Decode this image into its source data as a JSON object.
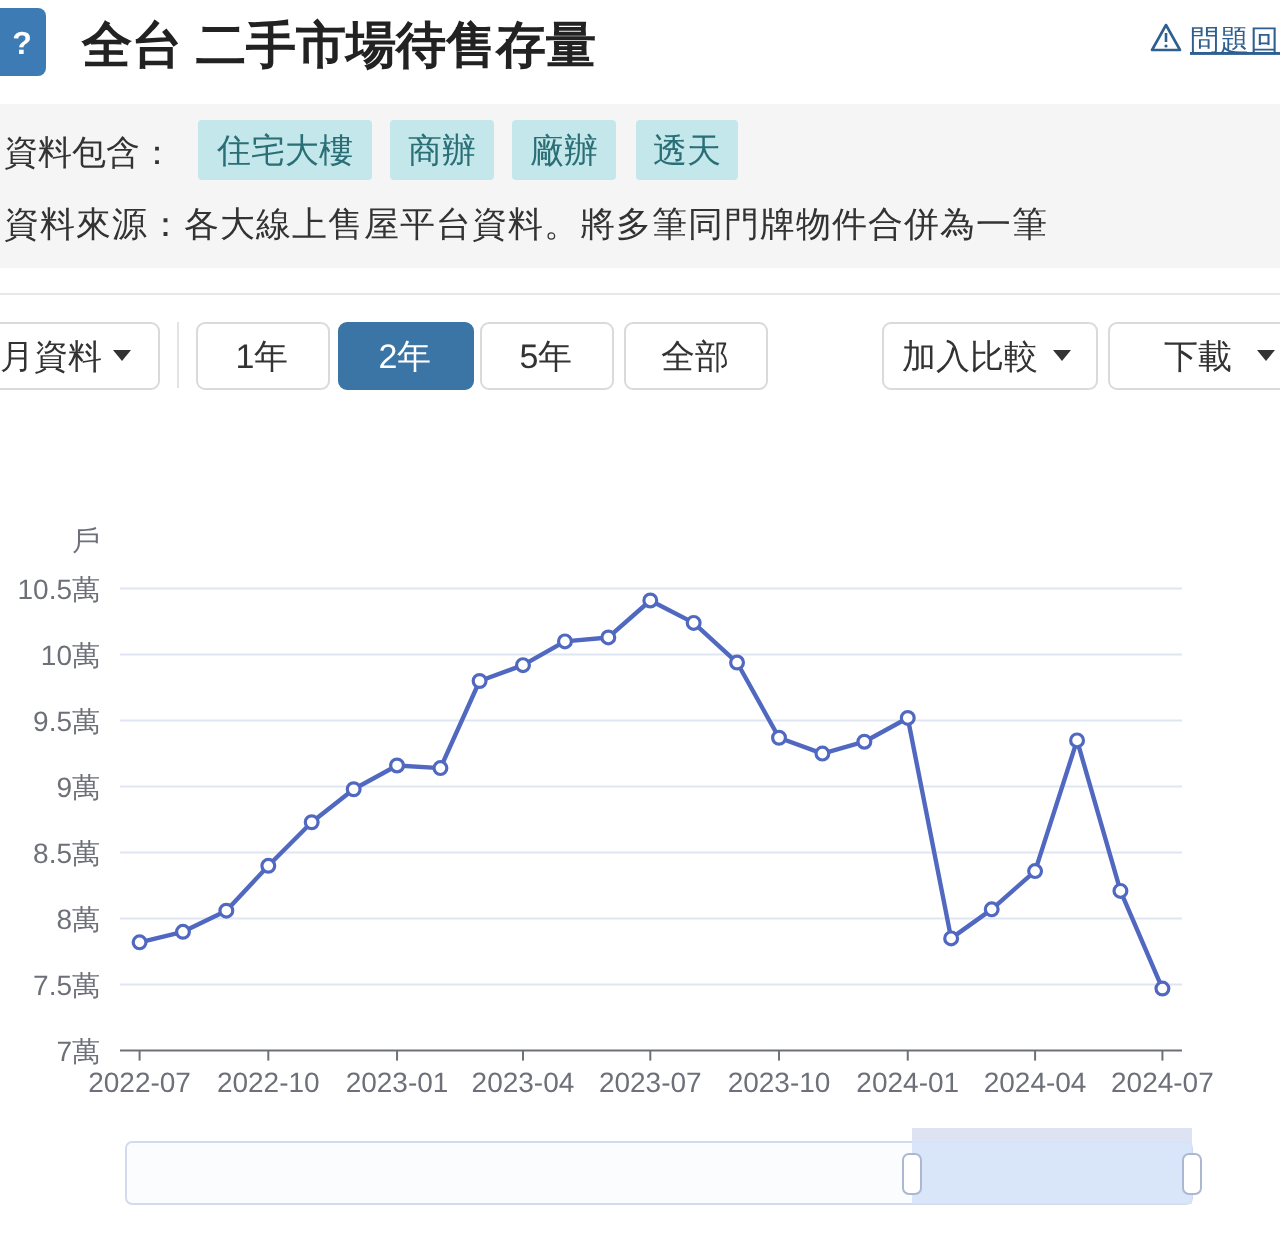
{
  "chart_data": {
    "type": "line",
    "title": "全台 二手市場待售存量",
    "ylabel": "戶",
    "annotations": [
      "?",
      "問題回",
      "資料包含：",
      "住宅大樓",
      "商辦",
      "廠辦",
      "透天",
      "資料來源：各大線上售屋平台資料。將多筆同門牌物件合併為一筆",
      "月資料",
      "1年",
      "2年",
      "5年",
      "全部",
      "加入比較",
      "下載"
    ],
    "x": [
      "2022-07",
      "2022-08",
      "2022-09",
      "2022-10",
      "2022-11",
      "2022-12",
      "2023-01",
      "2023-02",
      "2023-03",
      "2023-04",
      "2023-05",
      "2023-06",
      "2023-07",
      "2023-08",
      "2023-09",
      "2023-10",
      "2023-11",
      "2023-12",
      "2024-01",
      "2024-02",
      "2024-03",
      "2024-04",
      "2024-05",
      "2024-06",
      "2024-07"
    ],
    "series": [
      {
        "color": "#5068c0",
        "values": [
          7.82,
          7.9,
          8.06,
          8.4,
          8.73,
          8.98,
          9.16,
          9.14,
          9.8,
          9.92,
          10.1,
          10.13,
          10.41,
          10.24,
          9.94,
          9.37,
          9.25,
          9.34,
          9.52,
          7.85,
          8.07,
          8.36,
          9.35,
          8.21,
          7.47
        ]
      }
    ],
    "xlim": [
      "2022-06-17",
      "2024-07-15"
    ],
    "xticks": [
      "2022-07",
      "2022-10",
      "2023-01",
      "2023-04",
      "2023-07",
      "2023-10",
      "2024-01",
      "2024-04",
      "2024-07"
    ],
    "ylim": [
      7,
      10.5
    ],
    "yticks": [
      {
        "value": 7,
        "label": "7萬"
      },
      {
        "value": 7.5,
        "label": "7.5萬"
      },
      {
        "value": 8,
        "label": "8萬"
      },
      {
        "value": 8.5,
        "label": "8.5萬"
      },
      {
        "value": 9,
        "label": "9萬"
      },
      {
        "value": 9.5,
        "label": "9.5萬"
      },
      {
        "value": 10,
        "label": "10萬"
      },
      {
        "value": 10.5,
        "label": "10.5萬"
      }
    ],
    "grid": "y",
    "marker": "circle",
    "line_style": "solid"
  }
}
